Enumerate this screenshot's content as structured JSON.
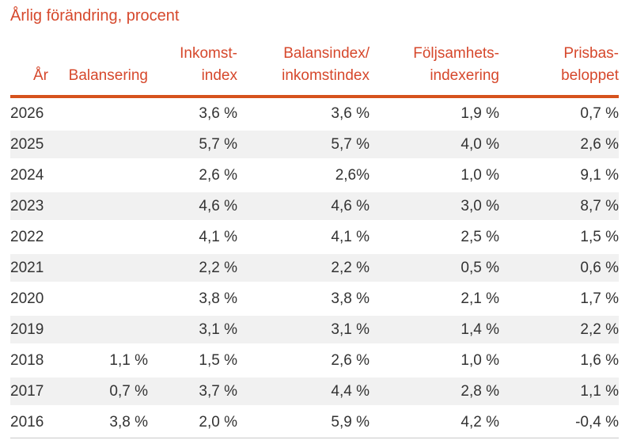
{
  "title": "Årlig förändring, procent",
  "colors": {
    "accent_text": "#d6482c",
    "accent_border": "#d6521c",
    "stripe": "#f1f1f1",
    "body_text": "#333333"
  },
  "table": {
    "columns": [
      {
        "id": "year",
        "lines": [
          "År"
        ]
      },
      {
        "id": "balansering",
        "lines": [
          "Balansering"
        ]
      },
      {
        "id": "inkomstindex",
        "lines": [
          "Inkomst-",
          "index"
        ]
      },
      {
        "id": "balansindex",
        "lines": [
          "Balansindex/",
          "inkomstindex"
        ]
      },
      {
        "id": "foljsamhet",
        "lines": [
          "Följsamhets-",
          "indexering"
        ]
      },
      {
        "id": "prisbas",
        "lines": [
          "Prisbas-",
          "beloppet"
        ]
      }
    ],
    "rows": [
      {
        "year": "2026",
        "balansering": "",
        "inkomstindex": "3,6 %",
        "balansindex": "3,6 %",
        "foljsamhet": "1,9 %",
        "prisbas": "0,7 %"
      },
      {
        "year": "2025",
        "balansering": "",
        "inkomstindex": "5,7 %",
        "balansindex": "5,7 %",
        "foljsamhet": "4,0 %",
        "prisbas": "2,6 %"
      },
      {
        "year": "2024",
        "balansering": "",
        "inkomstindex": "2,6 %",
        "balansindex": "2,6%",
        "foljsamhet": "1,0 %",
        "prisbas": "9,1 %"
      },
      {
        "year": "2023",
        "balansering": "",
        "inkomstindex": "4,6 %",
        "balansindex": "4,6 %",
        "foljsamhet": "3,0 %",
        "prisbas": "8,7 %"
      },
      {
        "year": "2022",
        "balansering": "",
        "inkomstindex": "4,1 %",
        "balansindex": "4,1 %",
        "foljsamhet": "2,5 %",
        "prisbas": "1,5 %"
      },
      {
        "year": "2021",
        "balansering": "",
        "inkomstindex": "2,2 %",
        "balansindex": "2,2 %",
        "foljsamhet": "0,5 %",
        "prisbas": "0,6 %"
      },
      {
        "year": "2020",
        "balansering": "",
        "inkomstindex": "3,8 %",
        "balansindex": "3,8 %",
        "foljsamhet": "2,1 %",
        "prisbas": "1,7 %"
      },
      {
        "year": "2019",
        "balansering": "",
        "inkomstindex": "3,1 %",
        "balansindex": "3,1 %",
        "foljsamhet": "1,4 %",
        "prisbas": "2,2 %"
      },
      {
        "year": "2018",
        "balansering": "1,1 %",
        "inkomstindex": "1,5 %",
        "balansindex": "2,6 %",
        "foljsamhet": "1,0 %",
        "prisbas": "1,6 %"
      },
      {
        "year": "2017",
        "balansering": "0,7 %",
        "inkomstindex": "3,7 %",
        "balansindex": "4,4 %",
        "foljsamhet": "2,8 %",
        "prisbas": "1,1 %"
      },
      {
        "year": "2016",
        "balansering": "3,8 %",
        "inkomstindex": "2,0 %",
        "balansindex": "5,9 %",
        "foljsamhet": "4,2 %",
        "prisbas": "-0,4 %"
      }
    ]
  },
  "chart_data": {
    "type": "table",
    "title": "Årlig förändring, procent",
    "unit": "percent",
    "columns": [
      "År",
      "Balansering",
      "Inkomstindex",
      "Balansindex/inkomstindex",
      "Följsamhetsindexering",
      "Prisbasbeloppet"
    ],
    "rows": [
      [
        "2026",
        null,
        3.6,
        3.6,
        1.9,
        0.7
      ],
      [
        "2025",
        null,
        5.7,
        5.7,
        4.0,
        2.6
      ],
      [
        "2024",
        null,
        2.6,
        2.6,
        1.0,
        9.1
      ],
      [
        "2023",
        null,
        4.6,
        4.6,
        3.0,
        8.7
      ],
      [
        "2022",
        null,
        4.1,
        4.1,
        2.5,
        1.5
      ],
      [
        "2021",
        null,
        2.2,
        2.2,
        0.5,
        0.6
      ],
      [
        "2020",
        null,
        3.8,
        3.8,
        2.1,
        1.7
      ],
      [
        "2019",
        null,
        3.1,
        3.1,
        1.4,
        2.2
      ],
      [
        "2018",
        1.1,
        1.5,
        2.6,
        1.0,
        1.6
      ],
      [
        "2017",
        0.7,
        3.7,
        4.4,
        2.8,
        1.1
      ],
      [
        "2016",
        3.8,
        2.0,
        5.9,
        4.2,
        -0.4
      ]
    ]
  }
}
